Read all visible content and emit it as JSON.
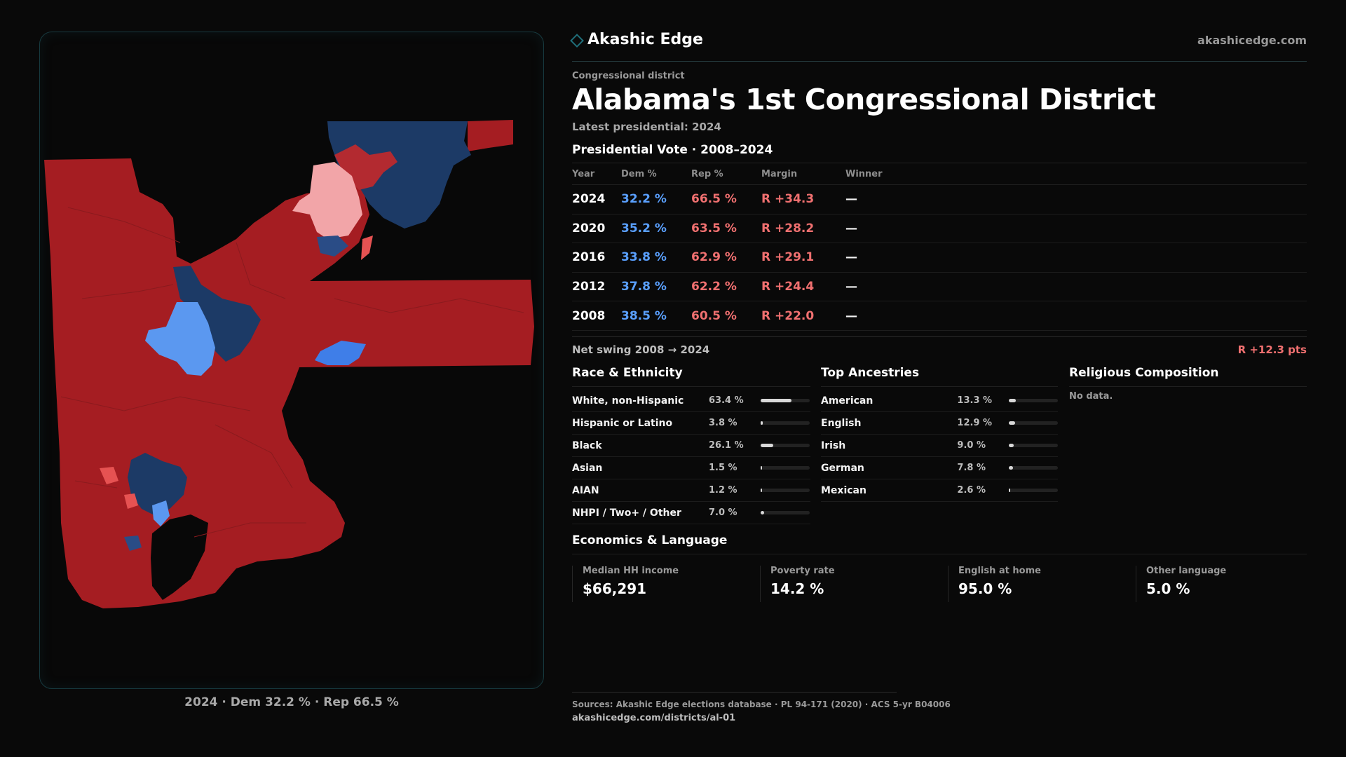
{
  "brand": {
    "name": "Akashic Edge",
    "url": "akashicedge.com"
  },
  "header": {
    "eyebrow": "Congressional district",
    "title": "Alabama's 1st Congressional District",
    "latest": "Latest presidential: 2024"
  },
  "colors": {
    "dem": "#5aa0ff",
    "rep": "#f07070",
    "map_red": "#a51d22",
    "map_dark_blue": "#1c3a66",
    "map_light_blue": "#5b98f0",
    "map_pink": "#f2a5a8",
    "map_salmon": "#e65252",
    "accent_teal": "#1f6f7a"
  },
  "vote": {
    "heading": "Presidential Vote · 2008–2024",
    "columns": [
      "Year",
      "Dem %",
      "Rep %",
      "Margin",
      "Winner"
    ],
    "rows": [
      {
        "year": "2024",
        "dem": "32.2 %",
        "rep": "66.5 %",
        "margin": "R +34.3",
        "winner": "—"
      },
      {
        "year": "2020",
        "dem": "35.2 %",
        "rep": "63.5 %",
        "margin": "R +28.2",
        "winner": "—"
      },
      {
        "year": "2016",
        "dem": "33.8 %",
        "rep": "62.9 %",
        "margin": "R +29.1",
        "winner": "—"
      },
      {
        "year": "2012",
        "dem": "37.8 %",
        "rep": "62.2 %",
        "margin": "R +24.4",
        "winner": "—"
      },
      {
        "year": "2008",
        "dem": "38.5 %",
        "rep": "60.5 %",
        "margin": "R +22.0",
        "winner": "—"
      }
    ],
    "swing_label": "Net swing 2008 → 2024",
    "swing_value": "R +12.3 pts"
  },
  "race": {
    "title": "Race & Ethnicity",
    "items": [
      {
        "label": "White, non-Hispanic",
        "pct": "63.4 %",
        "value": 63.4
      },
      {
        "label": "Hispanic or Latino",
        "pct": "3.8 %",
        "value": 3.8
      },
      {
        "label": "Black",
        "pct": "26.1 %",
        "value": 26.1
      },
      {
        "label": "Asian",
        "pct": "1.5 %",
        "value": 1.5
      },
      {
        "label": "AIAN",
        "pct": "1.2 %",
        "value": 1.2
      },
      {
        "label": "NHPI / Two+ / Other",
        "pct": "7.0 %",
        "value": 7.0
      }
    ]
  },
  "ancestry": {
    "title": "Top Ancestries",
    "items": [
      {
        "label": "American",
        "pct": "13.3 %",
        "value": 13.3
      },
      {
        "label": "English",
        "pct": "12.9 %",
        "value": 12.9
      },
      {
        "label": "Irish",
        "pct": "9.0 %",
        "value": 9.0
      },
      {
        "label": "German",
        "pct": "7.8 %",
        "value": 7.8
      },
      {
        "label": "Mexican",
        "pct": "2.6 %",
        "value": 2.6
      }
    ]
  },
  "religion": {
    "title": "Religious Composition",
    "empty": "No data."
  },
  "economics": {
    "title": "Economics & Language",
    "metrics": [
      {
        "label": "Median HH income",
        "value": "$66,291"
      },
      {
        "label": "Poverty rate",
        "value": "14.2 %"
      },
      {
        "label": "English at home",
        "value": "95.0 %"
      },
      {
        "label": "Other language",
        "value": "5.0 %"
      }
    ]
  },
  "map": {
    "caption": "2024 · Dem 32.2 % · Rep 66.5 %"
  },
  "footer": {
    "sources": "Sources: Akashic Edge elections database · PL 94-171 (2020) · ACS 5-yr B04006",
    "url": "akashicedge.com/districts/al-01"
  }
}
